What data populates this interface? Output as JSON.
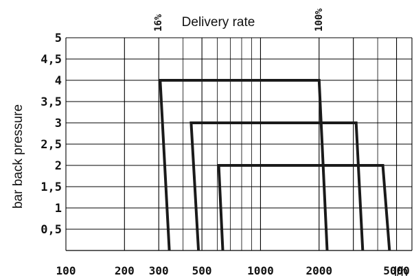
{
  "chart_data": {
    "type": "line",
    "title": "Delivery rate",
    "xlabel": "l/h",
    "ylabel": "bar back pressure",
    "x_scale": "log",
    "xlim": [
      100,
      6000
    ],
    "ylim": [
      0,
      5
    ],
    "x_ticks": [
      100,
      200,
      300,
      500,
      1000,
      2000,
      5000
    ],
    "x_tick_labels": [
      "100",
      "200",
      "300",
      "500",
      "1000",
      "2000",
      "5000"
    ],
    "y_ticks": [
      0.5,
      1,
      1.5,
      2,
      2.5,
      3,
      3.5,
      4,
      4.5,
      5
    ],
    "y_tick_labels": [
      "0,5",
      "1",
      "1,5",
      "2",
      "2,5",
      "3",
      "3,5",
      "4",
      "4,5",
      "5"
    ],
    "grid": true,
    "percent_marks": [
      {
        "label": "16%",
        "x": 300
      },
      {
        "label": "100%",
        "x": 2000
      }
    ],
    "series": [
      {
        "x": [
          340,
          305,
          2000,
          2200
        ],
        "y": [
          0,
          4,
          4,
          0
        ]
      },
      {
        "x": [
          480,
          440,
          3100,
          3350
        ],
        "y": [
          0,
          3,
          3,
          0
        ]
      },
      {
        "x": [
          640,
          610,
          4250,
          4600
        ],
        "y": [
          0,
          2,
          2,
          0
        ]
      }
    ],
    "line_color": "#1a1a1a",
    "grid_color": "#000000"
  }
}
